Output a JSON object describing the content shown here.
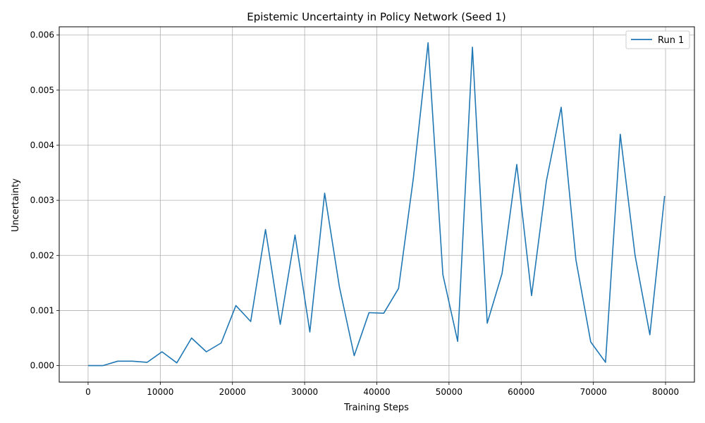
{
  "chart_data": {
    "type": "line",
    "title": "Epistemic Uncertainty in Policy Network (Seed 1)",
    "xlabel": "Training Steps",
    "ylabel": "Uncertainty",
    "xlim": [
      -4000,
      84000
    ],
    "ylim": [
      -0.0003,
      0.00615
    ],
    "xticks": [
      0,
      10000,
      20000,
      30000,
      40000,
      50000,
      60000,
      70000,
      80000
    ],
    "xtick_labels": [
      "0",
      "10000",
      "20000",
      "30000",
      "40000",
      "50000",
      "60000",
      "70000",
      "80000"
    ],
    "yticks": [
      0.0,
      0.001,
      0.002,
      0.003,
      0.004,
      0.005,
      0.006
    ],
    "ytick_labels": [
      "0.000",
      "0.001",
      "0.002",
      "0.003",
      "0.004",
      "0.005",
      "0.006"
    ],
    "grid": true,
    "legend_position": "upper-right",
    "series": [
      {
        "name": "Run 1",
        "color": "#1f77b4",
        "x": [
          0,
          2048,
          4096,
          6144,
          8192,
          10240,
          12288,
          14336,
          16384,
          18432,
          20480,
          22528,
          24576,
          26624,
          28672,
          30720,
          32768,
          34816,
          36864,
          38912,
          40960,
          43008,
          45056,
          47104,
          49152,
          51200,
          53248,
          55296,
          57344,
          59392,
          61440,
          63488,
          65536,
          67584,
          69632,
          71680,
          73728,
          75776,
          77824,
          79872
        ],
        "y": [
          0.0,
          0.0,
          8e-05,
          8e-05,
          6e-05,
          0.00025,
          5e-05,
          0.0005,
          0.00025,
          0.00041,
          0.00109,
          0.0008,
          0.00247,
          0.00075,
          0.00237,
          0.00061,
          0.00313,
          0.00143,
          0.00018,
          0.00096,
          0.00095,
          0.0014,
          0.0034,
          0.00586,
          0.00165,
          0.00044,
          0.00578,
          0.00077,
          0.00167,
          0.00365,
          0.00127,
          0.00335,
          0.00469,
          0.00192,
          0.00043,
          6e-05,
          0.0042,
          0.002,
          0.00056,
          0.00308
        ]
      }
    ]
  }
}
